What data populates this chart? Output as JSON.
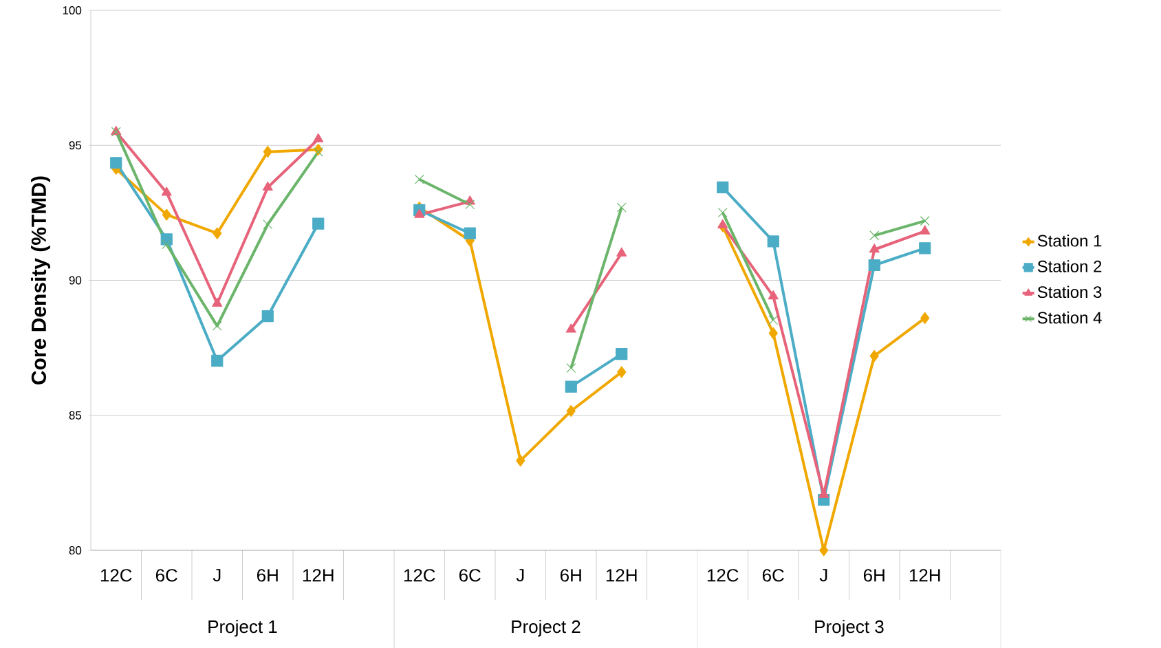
{
  "chart_data": {
    "type": "line",
    "ylabel": "Core Density (%TMD)",
    "categories": [
      "12C",
      "6C",
      "J",
      "6H",
      "12H",
      null,
      "12C",
      "6C",
      "J",
      "6H",
      "12H",
      null,
      "12C",
      "6C",
      "J",
      "6H",
      "12H",
      null
    ],
    "annotations": [
      "Project 1",
      "Project 2",
      "Project 3"
    ],
    "ylim": [
      80,
      100
    ],
    "yticks": [
      80,
      85,
      90,
      95,
      100
    ],
    "grid": "y",
    "legend": "right",
    "line_style": "solid",
    "series": [
      {
        "name": "Station 1",
        "color": "#f0a800",
        "marker": "diamond",
        "values": [
          94.13,
          92.43,
          91.74,
          94.76,
          94.84,
          null,
          92.7,
          91.47,
          83.32,
          85.16,
          86.6,
          null,
          92.0,
          88.04,
          80,
          87.2,
          88.6,
          null
        ]
      },
      {
        "name": "Station 2",
        "color": "#4bacc6",
        "marker": "square",
        "values": [
          94.35,
          91.52,
          87.02,
          88.67,
          92.1,
          null,
          92.6,
          91.74,
          null,
          86.06,
          87.27,
          null,
          93.44,
          91.44,
          81.87,
          90.56,
          91.19,
          null
        ]
      },
      {
        "name": "Station 3",
        "color": "#e6637a",
        "marker": "triangle",
        "values": [
          95.5,
          93.25,
          89.14,
          93.44,
          95.23,
          null,
          92.43,
          92.92,
          null,
          88.18,
          91.0,
          null,
          92.04,
          89.41,
          82.06,
          91.14,
          91.82,
          null
        ]
      },
      {
        "name": "Station 4",
        "color": "#6bb56b",
        "marker": "cross",
        "values": [
          95.5,
          91.33,
          88.31,
          92.07,
          94.76,
          null,
          93.74,
          92.81,
          null,
          86.75,
          92.7,
          null,
          92.51,
          88.53,
          null,
          91.66,
          92.2,
          null
        ]
      }
    ]
  }
}
